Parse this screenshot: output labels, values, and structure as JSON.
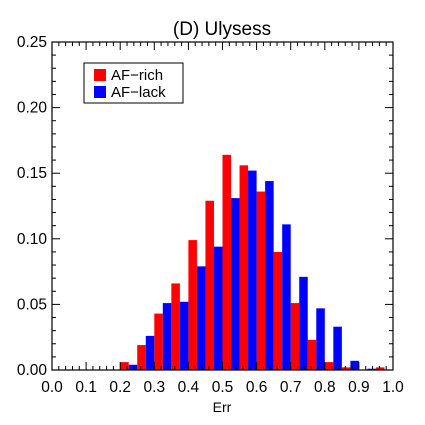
{
  "chart_data": {
    "type": "bar",
    "title": "(D) Ulysess",
    "xlabel": "Err",
    "ylabel": "",
    "xlim": [
      0.0,
      1.0
    ],
    "ylim": [
      0.0,
      0.25
    ],
    "x_ticks": [
      0.0,
      0.1,
      0.2,
      0.3,
      0.4,
      0.5,
      0.6,
      0.7,
      0.8,
      0.9,
      1.0
    ],
    "x_tick_labels": [
      "0.0",
      "0.1",
      "0.2",
      "0.3",
      "0.4",
      "0.5",
      "0.6",
      "0.7",
      "0.8",
      "0.9",
      "1.0"
    ],
    "y_ticks": [
      0.0,
      0.05,
      0.1,
      0.15,
      0.2,
      0.25
    ],
    "y_tick_labels": [
      "0.00",
      "0.05",
      "0.10",
      "0.15",
      "0.20",
      "0.25"
    ],
    "bin_width": 0.05,
    "bin_starts": [
      0.0,
      0.05,
      0.1,
      0.15,
      0.2,
      0.25,
      0.3,
      0.35,
      0.4,
      0.45,
      0.5,
      0.55,
      0.6,
      0.65,
      0.7,
      0.75,
      0.8,
      0.85,
      0.9,
      0.95
    ],
    "legend_position": "top-left",
    "grid": false,
    "series": [
      {
        "name": "AF−rich",
        "color": "#ff0000",
        "values": [
          0.0,
          0.0,
          0.0,
          0.0,
          0.006,
          0.019,
          0.043,
          0.066,
          0.099,
          0.129,
          0.164,
          0.156,
          0.136,
          0.09,
          0.051,
          0.023,
          0.006,
          0.002,
          0.0,
          0.002
        ]
      },
      {
        "name": "AF−lack",
        "color": "#0000ff",
        "values": [
          0.0,
          0.0,
          0.0,
          0.0,
          0.004,
          0.026,
          0.051,
          0.052,
          0.079,
          0.094,
          0.131,
          0.152,
          0.144,
          0.111,
          0.071,
          0.047,
          0.033,
          0.007,
          0.001,
          0.0
        ]
      }
    ]
  }
}
